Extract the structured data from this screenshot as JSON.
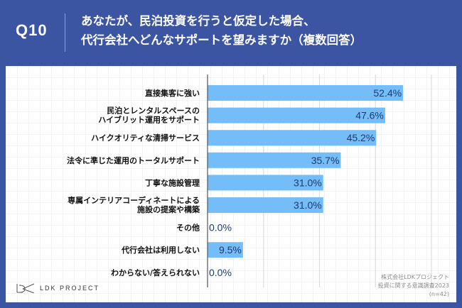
{
  "header": {
    "question_number": "Q10",
    "title_lines": [
      "あなたが、民泊投資を行うと仮定した場合、",
      "代行会社へどんなサポートを望みますか（複数回答）"
    ]
  },
  "colors": {
    "background": "#3b55a3",
    "bar": "#74bdf8",
    "value_text": "#1f3a6b"
  },
  "chart_data": {
    "type": "bar",
    "orientation": "horizontal",
    "title": "あなたが、民泊投資を行うと仮定した場合、代行会社へどんなサポートを望みますか（複数回答）",
    "categories": [
      [
        "直接集客に強い"
      ],
      [
        "民泊とレンタルスペースの",
        "ハイブリット運用をサポート"
      ],
      [
        "ハイクオリティな清掃サービス"
      ],
      [
        "法令に準じた運用のトータルサポート"
      ],
      [
        "丁寧な施設管理"
      ],
      [
        "専属インテリアコーディネートによる",
        "施設の提案や構築"
      ],
      [
        "その他"
      ],
      [
        "代行会社は利用しない"
      ],
      [
        "わからない/答えられない"
      ]
    ],
    "values": [
      52.4,
      47.6,
      45.2,
      35.7,
      31.0,
      31.0,
      0.0,
      9.5,
      0.0
    ],
    "value_labels": [
      "52.4%",
      "47.6%",
      "45.2%",
      "35.7%",
      "31.0%",
      "31.0%",
      "0.0%",
      "9.5%",
      "0.0%"
    ],
    "unit": "%",
    "xlim": [
      0,
      66
    ],
    "gridlines": [
      15,
      30,
      45,
      60
    ],
    "grid": true,
    "xlabel": "",
    "ylabel": ""
  },
  "footer": {
    "logo_text": "LDK PROJECT",
    "source_lines": [
      "株式会社LDKプロジェクト",
      "投資に関する意識調査2023",
      "(n=42)"
    ]
  }
}
